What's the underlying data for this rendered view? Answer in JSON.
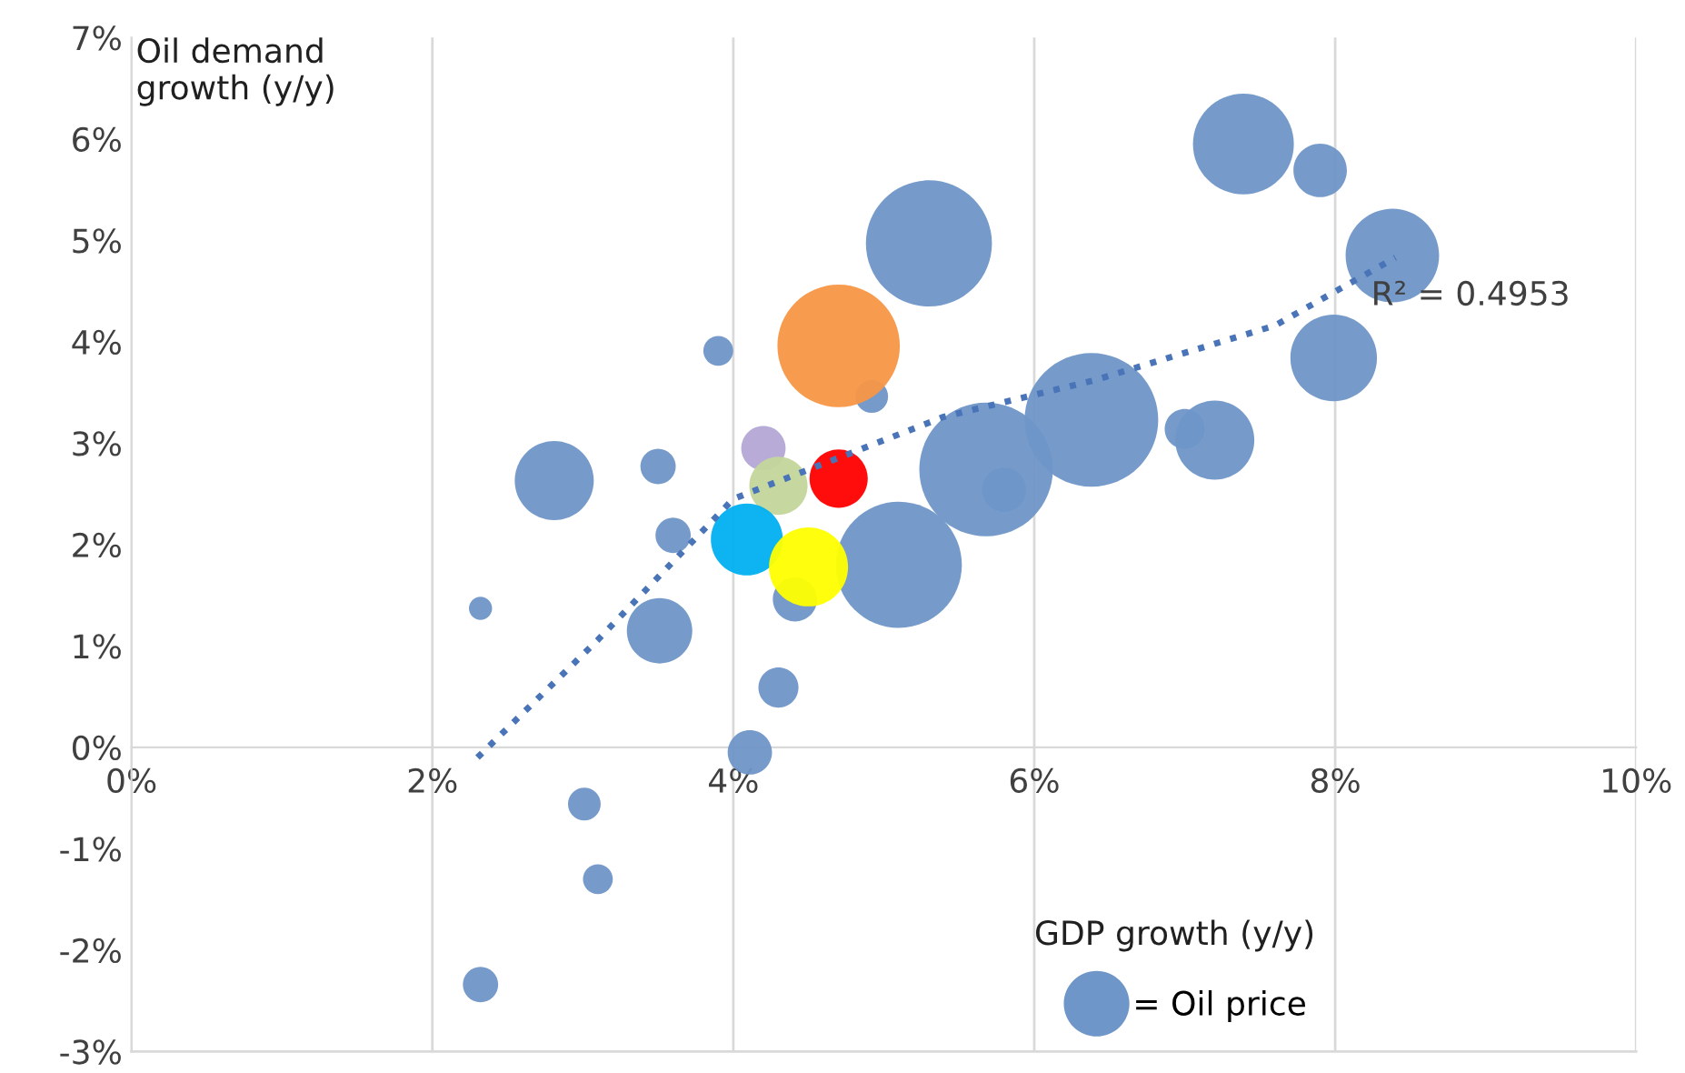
{
  "chart_data": {
    "type": "bubble",
    "xlabel": "GDP growth (y/y)",
    "ylabel": "Oil demand\ngrowth (y/y)",
    "xlim": [
      0,
      10
    ],
    "ylim": [
      -3,
      7
    ],
    "xticks": [
      {
        "value": 0,
        "label": "0%"
      },
      {
        "value": 2,
        "label": "2%"
      },
      {
        "value": 4,
        "label": "4%"
      },
      {
        "value": 6,
        "label": "6%"
      },
      {
        "value": 8,
        "label": "8%"
      },
      {
        "value": 10,
        "label": "10%"
      }
    ],
    "yticks": [
      {
        "value": -3,
        "label": "-3%"
      },
      {
        "value": -2,
        "label": "-2%"
      },
      {
        "value": -1,
        "label": "-1%"
      },
      {
        "value": 0,
        "label": "0%"
      },
      {
        "value": 1,
        "label": "1%"
      },
      {
        "value": 2,
        "label": "2%"
      },
      {
        "value": 3,
        "label": "3%"
      },
      {
        "value": 4,
        "label": "4%"
      },
      {
        "value": 5,
        "label": "5%"
      },
      {
        "value": 6,
        "label": "6%"
      },
      {
        "value": 7,
        "label": "7%"
      }
    ],
    "grid": "x",
    "legend": "bottom",
    "annotations": [
      "R² = 0.4953"
    ],
    "series": [
      {
        "name": "= Oil price",
        "color": "#6f96c8",
        "x": [
          2.32,
          2.32,
          3.01,
          3.1,
          2.81,
          3.5,
          3.6,
          3.51,
          3.9,
          4.11,
          4.3,
          4.41,
          4.92,
          5.1,
          5.3,
          5.68,
          5.8,
          6.38,
          7.0,
          7.2,
          7.39,
          7.9,
          7.99,
          8.38,
          4.7,
          4.2,
          4.3,
          4.09,
          4.5,
          4.7
        ],
        "values": [
          -2.34,
          1.37,
          -0.56,
          -1.3,
          2.63,
          2.77,
          2.09,
          1.15,
          3.91,
          -0.05,
          0.59,
          1.46,
          3.46,
          1.8,
          4.97,
          2.74,
          2.54,
          3.23,
          3.14,
          3.03,
          5.95,
          5.69,
          3.84,
          4.85,
          3.96,
          2.95,
          2.58,
          2.05,
          1.78,
          2.65
        ],
        "sizes": [
          0.07,
          0.03,
          0.06,
          0.05,
          0.35,
          0.07,
          0.07,
          0.24,
          0.05,
          0.11,
          0.09,
          0.11,
          0.06,
          0.89,
          0.89,
          1,
          0.11,
          1,
          0.09,
          0.35,
          0.57,
          0.16,
          0.42,
          0.49,
          0.84,
          0.11,
          0.19,
          0.29,
          0.35,
          0.19
        ],
        "colors": [
          "#6f96c8",
          "#6f96c8",
          "#6f96c8",
          "#6f96c8",
          "#6f96c8",
          "#6f96c8",
          "#6f96c8",
          "#6f96c8",
          "#6f96c8",
          "#6f96c8",
          "#6f96c8",
          "#6f96c8",
          "#6f96c8",
          "#6f96c8",
          "#6f96c8",
          "#6f96c8",
          "#6f96c8",
          "#6f96c8",
          "#6f96c8",
          "#6f96c8",
          "#6f96c8",
          "#6f96c8",
          "#6f96c8",
          "#6f96c8",
          "#f79646",
          "#b4a7d6",
          "#c3d69b",
          "#00b0f0",
          "#ffff00",
          "#ff0000"
        ]
      },
      {
        "type": "line",
        "color": "#4a74b8",
        "line_style": "dotted",
        "x": [
          2.3,
          3.1,
          4.0,
          5.4,
          6.4,
          7.6,
          8.4
        ],
        "values": [
          -0.1,
          1.06,
          2.45,
          3.26,
          3.62,
          4.16,
          4.83
        ]
      }
    ]
  }
}
